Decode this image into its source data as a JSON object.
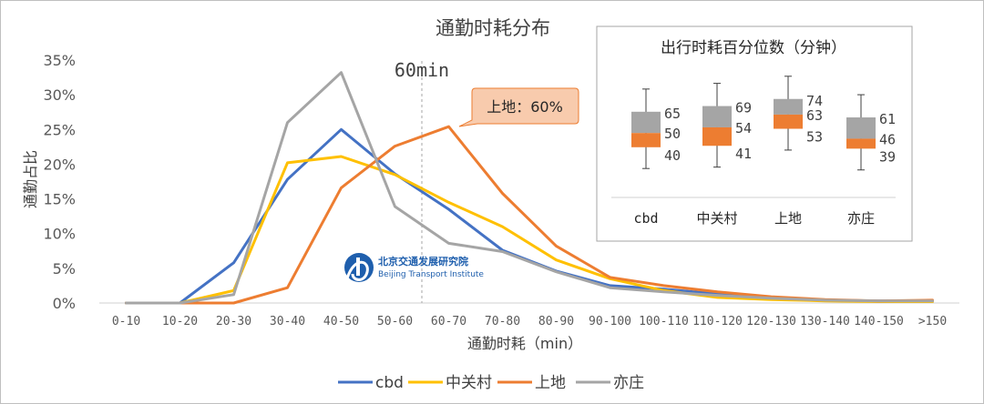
{
  "chart_data": [
    {
      "type": "line",
      "title": "通勤时耗分布",
      "xlabel": "通勤时耗（min）",
      "ylabel": "通勤占比",
      "ylim": [
        0,
        35
      ],
      "yticks": [
        "0%",
        "5%",
        "10%",
        "15%",
        "20%",
        "25%",
        "30%",
        "35%"
      ],
      "categories": [
        "0-10",
        "10-20",
        "20-30",
        "30-40",
        "40-50",
        "50-60",
        "60-70",
        "70-80",
        "80-90",
        "90-100",
        "100-110",
        "110-120",
        "120-130",
        "130-140",
        "140-150",
        ">150"
      ],
      "grid": false,
      "legend_position": "bottom",
      "series": [
        {
          "name": "cbd",
          "color": "#4472C4",
          "values": [
            0,
            0,
            5.8,
            17.8,
            25,
            18.6,
            13.5,
            7.6,
            4.6,
            2.5,
            2.0,
            1.3,
            0.8,
            0.4,
            0.3,
            0.3
          ]
        },
        {
          "name": "中关村",
          "color": "#FFC000",
          "values": [
            0,
            0,
            1.8,
            20.2,
            21.1,
            18.5,
            14.5,
            11.0,
            6.2,
            3.5,
            1.8,
            0.8,
            0.5,
            0.3,
            0.2,
            0.2
          ]
        },
        {
          "name": "上地",
          "color": "#ED7D31",
          "values": [
            0,
            0,
            0,
            2.2,
            16.6,
            22.6,
            25.4,
            15.8,
            8.2,
            3.7,
            2.5,
            1.6,
            0.9,
            0.5,
            0.3,
            0.4
          ]
        },
        {
          "name": "亦庄",
          "color": "#A5A5A5",
          "values": [
            0,
            0,
            1.2,
            26,
            33.2,
            13.9,
            8.6,
            7.4,
            4.5,
            2.2,
            1.6,
            1.1,
            0.7,
            0.4,
            0.3,
            0.3
          ]
        }
      ],
      "annotations": {
        "vline_label": "60min",
        "vline_x": 60,
        "callout_label": "上地：60%"
      }
    },
    {
      "type": "box",
      "title": "出行时耗百分位数（分钟）",
      "categories": [
        "cbd",
        "中关村",
        "上地",
        "亦庄"
      ],
      "quartiles": [
        {
          "q1": 40,
          "median": 50,
          "q3": 65
        },
        {
          "q1": 41,
          "median": 54,
          "q3": 69
        },
        {
          "q1": 53,
          "median": 63,
          "q3": 74
        },
        {
          "q1": 39,
          "median": 46,
          "q3": 61
        }
      ],
      "labels": [
        [
          "65",
          "50",
          "40"
        ],
        [
          "69",
          "54",
          "41"
        ],
        [
          "74",
          "63",
          "53"
        ],
        [
          "61",
          "46",
          "39"
        ]
      ]
    }
  ],
  "logo": {
    "name_cn": "北京交通发展研究院",
    "name_en": "Beijing Transport Institute"
  },
  "colors": {
    "median_band": "#ED7D31",
    "upper_band": "#A5A5A5",
    "callout_fill": "#F8CBAD",
    "logo_blue": "#1F5FAD"
  }
}
